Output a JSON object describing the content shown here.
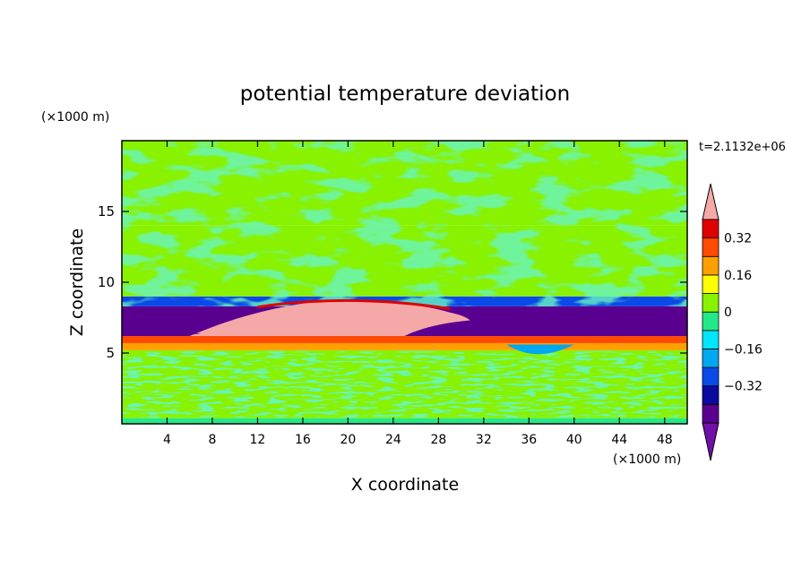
{
  "chart_data": {
    "type": "heatmap",
    "title": "potential temperature deviation",
    "xlabel": "X coordinate",
    "ylabel": "Z coordinate",
    "x_unit_label": "(×1000 m)",
    "y_unit_label": "(×1000 m)",
    "time_label": "t=2.1132e+06",
    "xlim": [
      0,
      50
    ],
    "ylim": [
      0,
      20
    ],
    "x_ticks": [
      4,
      8,
      12,
      16,
      20,
      24,
      28,
      32,
      36,
      40,
      44,
      48
    ],
    "y_ticks": [
      5,
      10,
      15
    ],
    "colorbar": {
      "levels": [
        -0.48,
        -0.4,
        -0.32,
        -0.24,
        -0.16,
        -0.08,
        0,
        0.08,
        0.16,
        0.24,
        0.32,
        0.4
      ],
      "tick_values": [
        0.32,
        0.16,
        0,
        -0.16,
        -0.32
      ],
      "tick_labels": [
        "0.32",
        "0.16",
        "0",
        "−0.16",
        "−0.32"
      ],
      "colors": [
        "#7010a8",
        "#5a0090",
        "#0a0aa0",
        "#0a4ae8",
        "#00a8f0",
        "#00e6ff",
        "#24e88a",
        "#88f200",
        "#ffff00",
        "#ffa000",
        "#ff4a00",
        "#e00000",
        "#f5a8a8"
      ]
    },
    "bands": [
      {
        "z_from": 0.0,
        "z_to": 0.4,
        "value": -0.05,
        "note": "mixed noisy surface layer"
      },
      {
        "z_from": 0.4,
        "z_to": 5.2,
        "value": 0.04,
        "note": "lower troposphere, alternating 0 / 0.08"
      },
      {
        "z_from": 5.2,
        "z_to": 5.7,
        "value": 0.16
      },
      {
        "z_from": 5.7,
        "z_to": 6.2,
        "value": 0.28
      },
      {
        "z_from": 6.2,
        "z_to": 8.3,
        "value": -0.42,
        "note": "strong negative layer, positive core near x=10-30"
      },
      {
        "z_from": 8.3,
        "z_to": 9.0,
        "value": -0.3
      },
      {
        "z_from": 9.0,
        "z_to": 14.0,
        "value": 0.06
      },
      {
        "z_from": 14.0,
        "z_to": 20.0,
        "value": 0.02
      }
    ],
    "positive_core": {
      "x_range": [
        8,
        32
      ],
      "z_range": [
        6.2,
        8.5
      ],
      "value": 0.48
    }
  }
}
